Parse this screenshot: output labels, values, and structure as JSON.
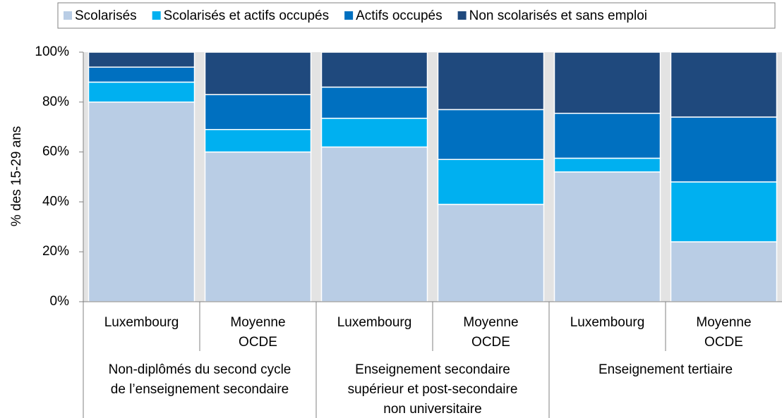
{
  "chart_data": {
    "type": "stacked_bar",
    "ylabel": "% des 15-29 ans",
    "categories": [
      [
        "Luxembourg"
      ],
      [
        "Moyenne",
        "OCDE"
      ],
      [
        "Luxembourg"
      ],
      [
        "Moyenne",
        "OCDE"
      ],
      [
        "Luxembourg"
      ],
      [
        "Moyenne",
        "OCDE"
      ]
    ],
    "groups": [
      [
        "Non-diplômés du second cycle",
        "de l’enseignement secondaire"
      ],
      [
        "Enseignement secondaire",
        "supérieur et post-secondaire",
        "non universitaire"
      ],
      [
        "Enseignement tertiaire"
      ]
    ],
    "series": [
      {
        "name": "Scolarisés",
        "color": "#b9cde5",
        "values": [
          80,
          60,
          62,
          39,
          52,
          24
        ]
      },
      {
        "name": "Scolarisés et actifs occupés",
        "color": "#00b0f0",
        "values": [
          8,
          9,
          11.5,
          18,
          5.5,
          24
        ]
      },
      {
        "name": "Actifs occupés",
        "color": "#0070c0",
        "values": [
          6,
          14,
          12.5,
          20,
          18,
          26
        ]
      },
      {
        "name": "Non scolarisés et sans emploi",
        "color": "#1f497d",
        "values": [
          6,
          17,
          14,
          23,
          24.5,
          26
        ]
      }
    ],
    "ylim": [
      0,
      100
    ],
    "yticks": [
      {
        "value": 0,
        "label": "0%"
      },
      {
        "value": 20,
        "label": "20%"
      },
      {
        "value": 40,
        "label": "40%"
      },
      {
        "value": 60,
        "label": "60%"
      },
      {
        "value": 80,
        "label": "80%"
      },
      {
        "value": 100,
        "label": "100%"
      }
    ],
    "legend": "top"
  }
}
